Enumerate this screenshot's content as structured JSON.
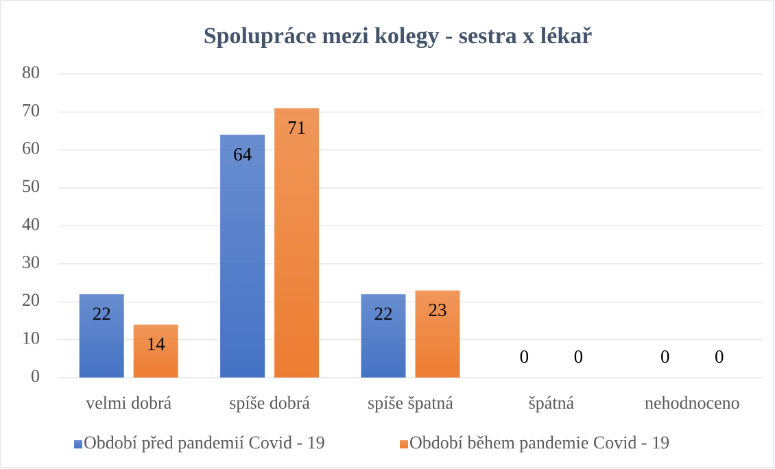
{
  "chart_data": {
    "type": "bar",
    "title": "Spolupráce mezi kolegy - sestra x lékař",
    "categories": [
      "velmi dobrá",
      "spíše dobrá",
      "spíše špatná",
      "špátná",
      "nehodnoceno"
    ],
    "series": [
      {
        "name": "Období před pandemií Covid - 19",
        "color": "#4472c4",
        "values": [
          22,
          64,
          22,
          0,
          0
        ]
      },
      {
        "name": "Období během pandemie Covid - 19",
        "color": "#ed7d31",
        "values": [
          14,
          71,
          23,
          0,
          0
        ]
      }
    ],
    "ylim": [
      0,
      80
    ],
    "yticks": [
      0,
      10,
      20,
      30,
      40,
      50,
      60,
      70,
      80
    ],
    "grid": true,
    "legend": "bottom"
  }
}
